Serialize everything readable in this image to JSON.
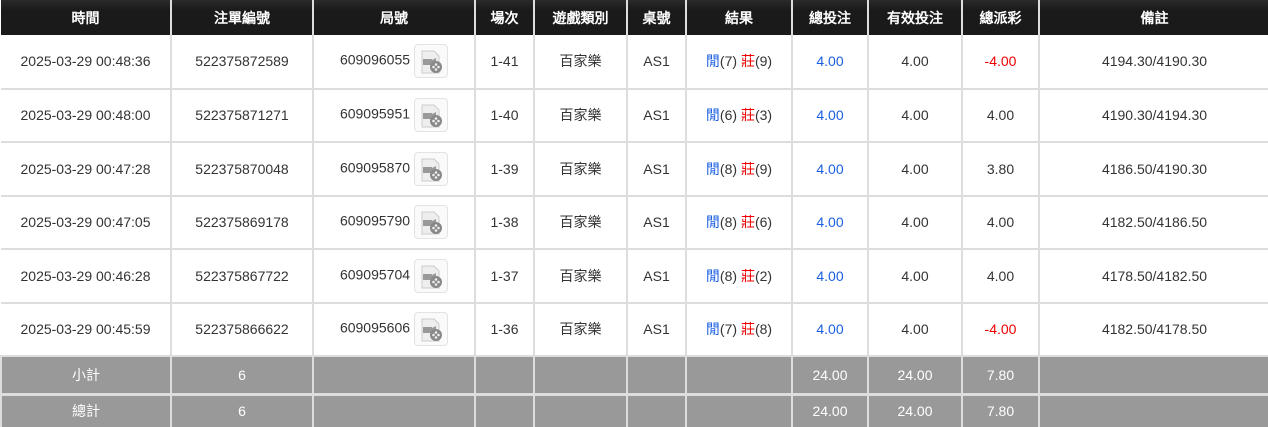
{
  "headers": [
    "時間",
    "注單編號",
    "局號",
    "場次",
    "遊戲類別",
    "桌號",
    "結果",
    "總投注",
    "有效投注",
    "總派彩",
    "備註"
  ],
  "rows": [
    {
      "time": "2025-03-29 00:48:36",
      "bet_id": "522375872589",
      "round": "609096055",
      "shoe": "1-41",
      "game": "百家樂",
      "table": "AS1",
      "player_label": "閒",
      "player": "(7)",
      "banker_label": "莊",
      "banker": "(9)",
      "total_bet": "4.00",
      "valid_bet": "4.00",
      "payout": "-4.00",
      "payout_neg": true,
      "note": "4194.30/4190.30"
    },
    {
      "time": "2025-03-29 00:48:00",
      "bet_id": "522375871271",
      "round": "609095951",
      "shoe": "1-40",
      "game": "百家樂",
      "table": "AS1",
      "player_label": "閒",
      "player": "(6)",
      "banker_label": "莊",
      "banker": "(3)",
      "total_bet": "4.00",
      "valid_bet": "4.00",
      "payout": "4.00",
      "payout_neg": false,
      "note": "4190.30/4194.30"
    },
    {
      "time": "2025-03-29 00:47:28",
      "bet_id": "522375870048",
      "round": "609095870",
      "shoe": "1-39",
      "game": "百家樂",
      "table": "AS1",
      "player_label": "閒",
      "player": "(8)",
      "banker_label": "莊",
      "banker": "(9)",
      "total_bet": "4.00",
      "valid_bet": "4.00",
      "payout": "3.80",
      "payout_neg": false,
      "note": "4186.50/4190.30"
    },
    {
      "time": "2025-03-29 00:47:05",
      "bet_id": "522375869178",
      "round": "609095790",
      "shoe": "1-38",
      "game": "百家樂",
      "table": "AS1",
      "player_label": "閒",
      "player": "(8)",
      "banker_label": "莊",
      "banker": "(6)",
      "total_bet": "4.00",
      "valid_bet": "4.00",
      "payout": "4.00",
      "payout_neg": false,
      "note": "4182.50/4186.50"
    },
    {
      "time": "2025-03-29 00:46:28",
      "bet_id": "522375867722",
      "round": "609095704",
      "shoe": "1-37",
      "game": "百家樂",
      "table": "AS1",
      "player_label": "閒",
      "player": "(8)",
      "banker_label": "莊",
      "banker": "(2)",
      "total_bet": "4.00",
      "valid_bet": "4.00",
      "payout": "4.00",
      "payout_neg": false,
      "note": "4178.50/4182.50"
    },
    {
      "time": "2025-03-29 00:45:59",
      "bet_id": "522375866622",
      "round": "609095606",
      "shoe": "1-36",
      "game": "百家樂",
      "table": "AS1",
      "player_label": "閒",
      "player": "(7)",
      "banker_label": "莊",
      "banker": "(8)",
      "total_bet": "4.00",
      "valid_bet": "4.00",
      "payout": "-4.00",
      "payout_neg": true,
      "note": "4182.50/4178.50"
    }
  ],
  "subtotal": {
    "label": "小計",
    "count": "6",
    "total_bet": "24.00",
    "valid_bet": "24.00",
    "payout": "7.80"
  },
  "grandtotal": {
    "label": "總計",
    "count": "6",
    "total_bet": "24.00",
    "valid_bet": "24.00",
    "payout": "7.80"
  },
  "colors": {
    "blue": "#1a5fe0",
    "red": "#ee0000",
    "header_bg": "#1a1a1a",
    "summary_bg": "#999999"
  }
}
